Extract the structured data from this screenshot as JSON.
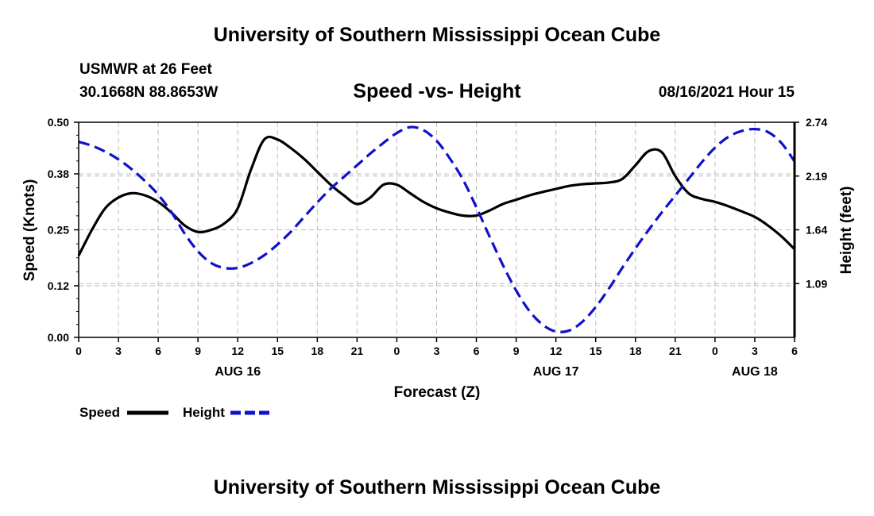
{
  "header": {
    "title": "University of Southern Mississippi Ocean Cube",
    "station": "USMWR at 26 Feet",
    "coords": "30.1668N  88.8653W",
    "datetime": "08/16/2021 Hour 15"
  },
  "footer": {
    "title": "University of Southern Mississippi Ocean Cube"
  },
  "colors": {
    "speed": "#000000",
    "height": "#1010cc",
    "grid": "#bbbbbb"
  },
  "chart_data": {
    "type": "line",
    "title": "Speed -vs- Height",
    "xlabel": "Forecast (Z)",
    "ylabel": "Speed (Knots)",
    "y2label": "Height (feet)",
    "xlim": [
      0,
      54
    ],
    "ylim": [
      0,
      0.5
    ],
    "y2lim": [
      0.54,
      2.74
    ],
    "x_ticks": [
      0,
      3,
      6,
      9,
      12,
      15,
      18,
      21,
      24,
      27,
      30,
      33,
      36,
      39,
      42,
      45,
      48,
      51,
      54
    ],
    "x_tick_labels": [
      "0",
      "3",
      "6",
      "9",
      "12",
      "15",
      "18",
      "21",
      "0",
      "3",
      "6",
      "9",
      "12",
      "15",
      "18",
      "21",
      "0",
      "3",
      "6"
    ],
    "day_labels": [
      {
        "x": 12,
        "label": "AUG 16"
      },
      {
        "x": 36,
        "label": "AUG 17"
      },
      {
        "x": 51,
        "label": "AUG 18"
      }
    ],
    "y_ticks": [
      0.0,
      0.12,
      0.25,
      0.38,
      0.5
    ],
    "y_tick_labels": [
      "0.00",
      "0.12",
      "0.25",
      "0.38",
      "0.50"
    ],
    "y2_ticks": [
      1.09,
      1.64,
      2.19,
      2.74
    ],
    "y2_tick_labels": [
      "1.09",
      "1.64",
      "2.19",
      "2.74"
    ],
    "legend": [
      {
        "name": "Speed",
        "style": "solid"
      },
      {
        "name": "Height",
        "style": "dashed"
      }
    ],
    "series": [
      {
        "name": "Speed",
        "axis": "left",
        "x": [
          0,
          1,
          2,
          3,
          4,
          5,
          6,
          7,
          8,
          9,
          10,
          11,
          12,
          13,
          14,
          15,
          16,
          17,
          18,
          19,
          20,
          21,
          22,
          23,
          24,
          25,
          26,
          27,
          28,
          29,
          30,
          31,
          32,
          33,
          34,
          35,
          36,
          37,
          38,
          39,
          40,
          41,
          42,
          43,
          44,
          45,
          46,
          47,
          48,
          49,
          50,
          51,
          52,
          53,
          54
        ],
        "values": [
          0.19,
          0.25,
          0.3,
          0.325,
          0.335,
          0.33,
          0.315,
          0.29,
          0.26,
          0.245,
          0.25,
          0.265,
          0.3,
          0.39,
          0.46,
          0.46,
          0.44,
          0.415,
          0.385,
          0.355,
          0.33,
          0.31,
          0.325,
          0.355,
          0.355,
          0.335,
          0.315,
          0.3,
          0.29,
          0.283,
          0.283,
          0.295,
          0.31,
          0.32,
          0.33,
          0.338,
          0.345,
          0.352,
          0.356,
          0.358,
          0.36,
          0.368,
          0.4,
          0.433,
          0.43,
          0.375,
          0.335,
          0.322,
          0.315,
          0.305,
          0.293,
          0.28,
          0.26,
          0.235,
          0.205
        ]
      },
      {
        "name": "Height",
        "axis": "right",
        "x": [
          0,
          1,
          2,
          3,
          4,
          5,
          6,
          7,
          8,
          9,
          10,
          11,
          12,
          13,
          14,
          15,
          16,
          17,
          18,
          19,
          20,
          21,
          22,
          23,
          24,
          25,
          26,
          27,
          28,
          29,
          30,
          31,
          32,
          33,
          34,
          35,
          36,
          37,
          38,
          39,
          40,
          41,
          42,
          43,
          44,
          45,
          46,
          47,
          48,
          49,
          50,
          51,
          52,
          53,
          54
        ],
        "values": [
          2.54,
          2.5,
          2.44,
          2.36,
          2.26,
          2.14,
          2.0,
          1.82,
          1.6,
          1.42,
          1.3,
          1.25,
          1.25,
          1.3,
          1.38,
          1.49,
          1.62,
          1.77,
          1.92,
          2.06,
          2.18,
          2.3,
          2.42,
          2.53,
          2.63,
          2.69,
          2.66,
          2.55,
          2.37,
          2.15,
          1.87,
          1.57,
          1.28,
          1.02,
          0.81,
          0.67,
          0.6,
          0.61,
          0.7,
          0.85,
          1.04,
          1.25,
          1.45,
          1.64,
          1.82,
          1.99,
          2.16,
          2.33,
          2.48,
          2.59,
          2.65,
          2.67,
          2.64,
          2.53,
          2.34
        ]
      }
    ]
  }
}
